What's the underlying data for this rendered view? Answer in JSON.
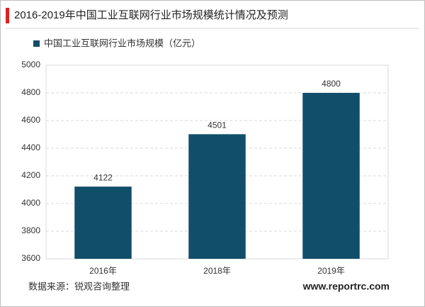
{
  "chart_data": {
    "type": "bar",
    "title": "2016-2019年中国工业互联网行业市场规模统计情况及预测",
    "categories": [
      "2016年",
      "2018年",
      "2019年"
    ],
    "series": [
      {
        "name": "中国工业互联网行业市场规模（亿元）",
        "color": "#114e6a",
        "values": [
          4122,
          4501,
          4800
        ]
      }
    ],
    "ylim": [
      3600,
      5000
    ],
    "yticks": [
      3600,
      3800,
      4000,
      4200,
      4400,
      4600,
      4800,
      5000
    ],
    "grid": true,
    "source": "数据来源：锐观咨询整理",
    "website": "www.reportrc.com"
  }
}
